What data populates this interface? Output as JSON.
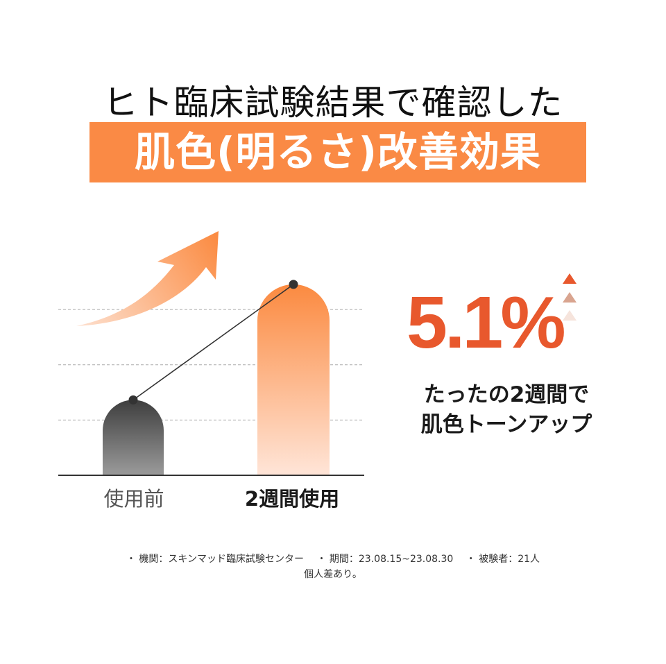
{
  "heading": {
    "line1": "ヒト臨床試験結果で確認した",
    "line2": "肌色(明るさ)改善効果"
  },
  "chart_data": {
    "type": "bar",
    "categories": [
      "使用前",
      "2週間使用"
    ],
    "values": [
      30,
      76
    ],
    "ylim": [
      0,
      100
    ],
    "grid": true,
    "colors": {
      "before_top": "#3e3e3e",
      "before_bottom": "#9b9b9b",
      "after_top": "#fb8a40",
      "after_bottom": "#ffe5d8",
      "arrow_tail": "#fde0cf",
      "arrow_head": "#fb8a40",
      "line": "#333333"
    }
  },
  "callout": {
    "percent": "5.1%",
    "subtitle_line1": "たったの2週間で",
    "subtitle_line2": "肌色トーンアップ",
    "triangle_colors": [
      "#e8582d",
      "#d9a48f",
      "#f6e4dc"
    ]
  },
  "footnote": {
    "line1": "・ 機関：スキンマッド臨床試験センター　 ・ 期間：23.08.15~23.08.30　 ・ 被験者：21人",
    "line2": "個人差あり。"
  }
}
